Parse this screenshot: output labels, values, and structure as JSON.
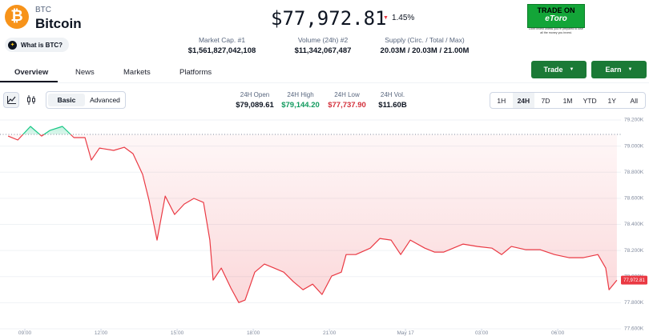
{
  "header": {
    "symbol": "BTC",
    "name": "Bitcoin",
    "about_button": "What is BTC?",
    "price": "$77,972.81",
    "change": "1.45%"
  },
  "stats": [
    {
      "label": "Market Cap. #1",
      "value": "$1,561,827,042,108"
    },
    {
      "label": "Volume (24h) #2",
      "value": "$11,342,067,487"
    },
    {
      "label": "Supply (Circ. / Total / Max)",
      "value": "20.03M / 20.03M / 21.00M"
    }
  ],
  "ad": {
    "line1": "TRADE ON",
    "line2": "eToro",
    "disclaimer": "Don't invest unless you're prepared to lose all the money you invest."
  },
  "tabs": [
    "Overview",
    "News",
    "Markets",
    "Platforms"
  ],
  "actions": [
    "Trade",
    "Earn"
  ],
  "modes": [
    "Basic",
    "Advanced"
  ],
  "summary": [
    {
      "label": "24H Open",
      "value": "$79,089.61"
    },
    {
      "label": "24H High",
      "value": "$79,144.20"
    },
    {
      "label": "24H Low",
      "value": "$77,737.90"
    },
    {
      "label": "24H Vol.",
      "value": "$11.60B"
    }
  ],
  "ranges": [
    "1H",
    "24H",
    "7D",
    "1M",
    "YTD",
    "1Y",
    "All"
  ],
  "chart_data": {
    "type": "line",
    "x": [
      8.34,
      8.72,
      9.22,
      9.66,
      9.98,
      10.48,
      10.93,
      11.37,
      11.62,
      11.94,
      12.5,
      12.92,
      13.26,
      13.64,
      13.89,
      14.21,
      14.53,
      14.9,
      15.28,
      15.66,
      16.04,
      16.29,
      16.42,
      16.74,
      17.12,
      17.43,
      17.68,
      18.06,
      18.44,
      18.82,
      19.2,
      19.58,
      19.96,
      20.34,
      20.71,
      21.09,
      21.47,
      21.66,
      22.04,
      22.61,
      22.99,
      23.43,
      23.81,
      24.19,
      24.76,
      25.14,
      25.51,
      26.27,
      26.84,
      27.41,
      27.79,
      28.17,
      28.73,
      29.3,
      29.87,
      30.44,
      31.01,
      31.58,
      31.89,
      32.02,
      32.33
    ],
    "values": [
      79077,
      79047,
      79151,
      79077,
      79120,
      79151,
      79065,
      79065,
      78893,
      78985,
      78967,
      78991,
      78942,
      78783,
      78587,
      78280,
      78617,
      78476,
      78556,
      78599,
      78568,
      78280,
      77973,
      78065,
      77912,
      77801,
      77820,
      78034,
      78096,
      78065,
      78034,
      77961,
      77899,
      77942,
      77863,
      78004,
      78034,
      78169,
      78169,
      78218,
      78292,
      78280,
      78169,
      78280,
      78218,
      78188,
      78188,
      78249,
      78231,
      78218,
      78169,
      78231,
      78206,
      78206,
      78169,
      78145,
      78145,
      78169,
      78065,
      77899,
      77973
    ],
    "xlim": [
      8.02,
      32.49
    ],
    "ylim": [
      77600,
      79200
    ],
    "xticks": [
      {
        "value": 9,
        "label": "09:00"
      },
      {
        "value": 12,
        "label": "12:00"
      },
      {
        "value": 15,
        "label": "15:00"
      },
      {
        "value": 18,
        "label": "18:00"
      },
      {
        "value": 21,
        "label": "21:00"
      },
      {
        "value": 24,
        "label": "May 17"
      },
      {
        "value": 27,
        "label": "03:00"
      },
      {
        "value": 30,
        "label": "06:00"
      }
    ],
    "yticks": [
      {
        "value": 79200,
        "label": "79.200K"
      },
      {
        "value": 79000,
        "label": "79.000K"
      },
      {
        "value": 78800,
        "label": "78.800K"
      },
      {
        "value": 78600,
        "label": "78.600K"
      },
      {
        "value": 78400,
        "label": "78.400K"
      },
      {
        "value": 78200,
        "label": "78.200K"
      },
      {
        "value": 78000,
        "label": "78.000K"
      },
      {
        "value": 77800,
        "label": "77.800K"
      },
      {
        "value": 77600,
        "label": "77.600K"
      }
    ],
    "baseline": 79089.61,
    "price_tag": {
      "value": 77972.81,
      "label": "77,972.81"
    },
    "up_color": "#16c784",
    "down_color": "#ea3943",
    "grid": true
  }
}
